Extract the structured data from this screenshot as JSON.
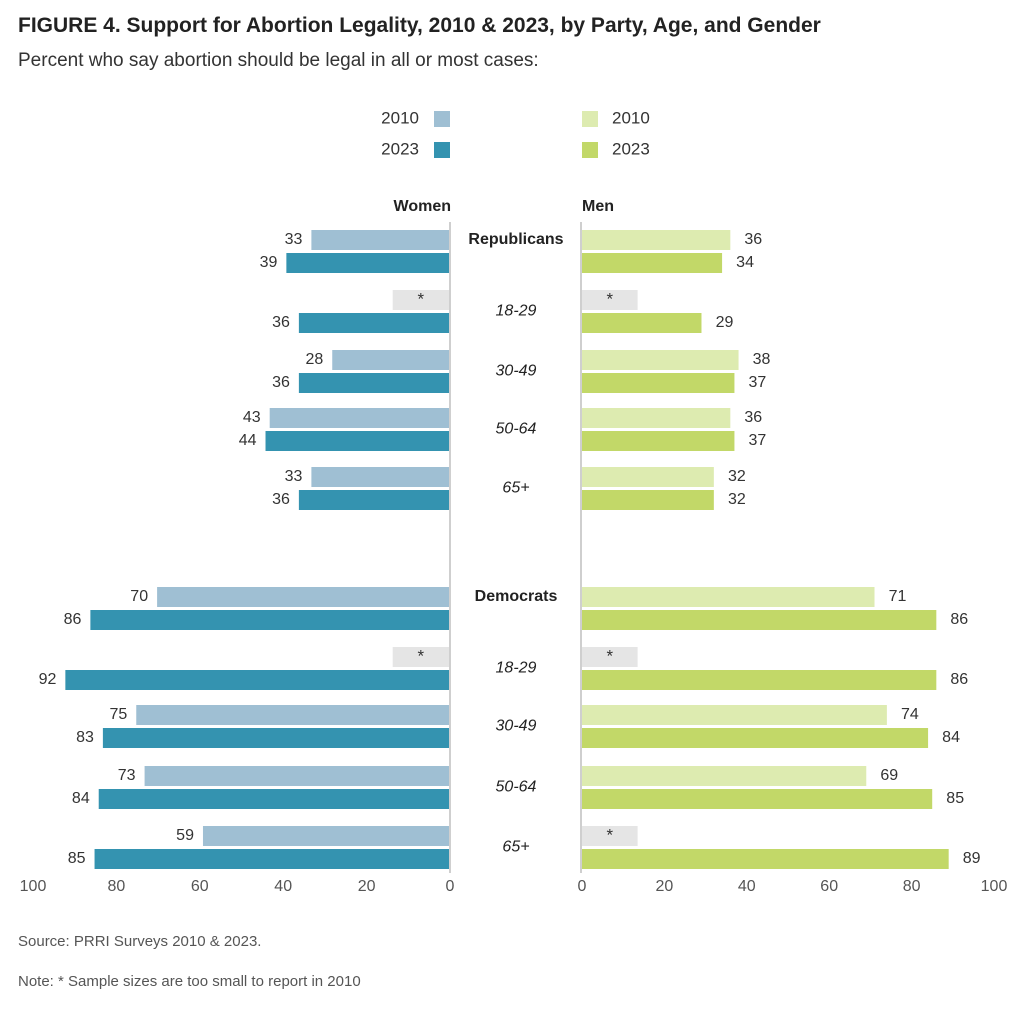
{
  "header": {
    "title": "FIGURE 4. Support for Abortion Legality, 2010 & 2023, by Party, Age, and Gender",
    "subtitle": "Percent who say abortion should be legal in all or most cases:"
  },
  "footer": {
    "source": "Source: PRRI Surveys 2010 & 2023.",
    "note": "Note: * Sample sizes are too small to report in 2010"
  },
  "chart_data": {
    "type": "bar",
    "orientation": "horizontal-butterfly",
    "panels": [
      "Women",
      "Men"
    ],
    "categories": [
      "Republicans",
      "18-29",
      "30-49",
      "50-64",
      "65+",
      "Democrats",
      "18-29",
      "30-49",
      "50-64",
      "65+"
    ],
    "group_label_style": [
      "bold",
      "italic",
      "italic",
      "italic",
      "italic",
      "bold",
      "italic",
      "italic",
      "italic",
      "italic"
    ],
    "series": [
      {
        "name": "2010",
        "panel": "Women",
        "color": "#9fbfd3",
        "values": [
          33,
          null,
          28,
          43,
          33,
          70,
          null,
          75,
          73,
          59
        ]
      },
      {
        "name": "2023",
        "panel": "Women",
        "color": "#3493b0",
        "values": [
          39,
          36,
          36,
          44,
          36,
          86,
          92,
          83,
          84,
          85
        ]
      },
      {
        "name": "2010",
        "panel": "Men",
        "color": "#ddebb0",
        "values": [
          36,
          null,
          38,
          36,
          32,
          71,
          null,
          74,
          69,
          null
        ]
      },
      {
        "name": "2023",
        "panel": "Men",
        "color": "#c2d868",
        "values": [
          34,
          29,
          37,
          37,
          32,
          86,
          86,
          84,
          85,
          89
        ]
      }
    ],
    "missing_marker": "*",
    "missing_color": "#e5e5e5",
    "xlim": [
      0,
      100
    ],
    "xticks": [
      0,
      20,
      40,
      60,
      80,
      100
    ],
    "legend": {
      "Women": [
        "2010",
        "2023"
      ],
      "Men": [
        "2010",
        "2023"
      ]
    }
  }
}
